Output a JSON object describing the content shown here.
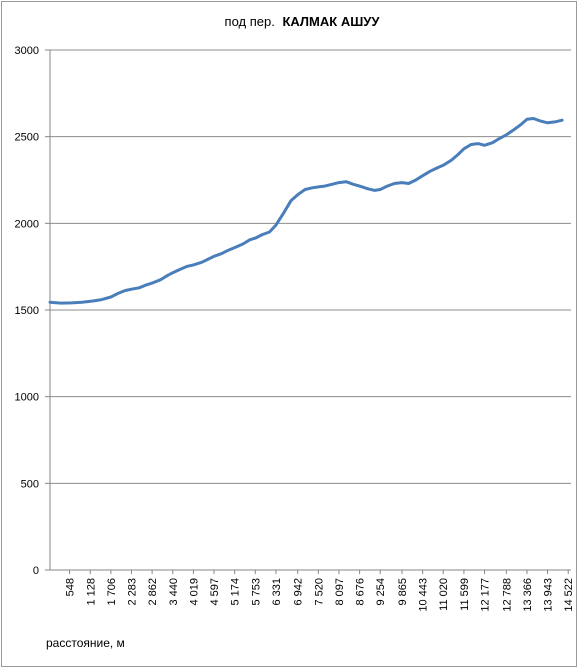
{
  "chart_data": {
    "type": "line",
    "title_prefix": "под   пер.",
    "title_bold": "КАЛМАК АШУУ",
    "xlabel": "расстояние, м",
    "ylabel": "",
    "ylim": [
      0,
      3000
    ],
    "y_ticks": [
      "0",
      "500",
      "1000",
      "1500",
      "2000",
      "2500",
      "3000"
    ],
    "y_tick_values": [
      0,
      500,
      1000,
      1500,
      2000,
      2500,
      3000
    ],
    "x_ticks": [
      "548",
      "1 128",
      "1 706",
      "2 283",
      "2 862",
      "3 440",
      "4 019",
      "4 597",
      "5 174",
      "5 753",
      "6 331",
      "6 942",
      "7 520",
      "8 097",
      "8 676",
      "9 254",
      "9 865",
      "10 443",
      "11 020",
      "11 599",
      "12 177",
      "12 788",
      "13 366",
      "13 943",
      "14 522"
    ],
    "x_tick_values": [
      548,
      1128,
      1706,
      2283,
      2862,
      3440,
      4019,
      4597,
      5174,
      5753,
      6331,
      6942,
      7520,
      8097,
      8676,
      9254,
      9865,
      10443,
      11020,
      11599,
      12177,
      12788,
      13366,
      13943,
      14522
    ],
    "xlim": [
      0,
      14600
    ],
    "grid": "horizontal",
    "line_color": "#4a7ebb",
    "series": [
      {
        "x": [
          0,
          300,
          600,
          900,
          1200,
          1450,
          1706,
          1900,
          2100,
          2283,
          2500,
          2700,
          2862,
          3100,
          3300,
          3440,
          3650,
          3850,
          4019,
          4250,
          4450,
          4597,
          4800,
          5000,
          5174,
          5400,
          5600,
          5753,
          5950,
          6150,
          6331,
          6550,
          6750,
          6942,
          7150,
          7350,
          7520,
          7700,
          7900,
          8097,
          8300,
          8500,
          8676,
          8900,
          9100,
          9254,
          9450,
          9650,
          9865,
          10050,
          10250,
          10443,
          10650,
          10850,
          11020,
          11250,
          11450,
          11599,
          11800,
          12000,
          12177,
          12400,
          12600,
          12788,
          13000,
          13200,
          13366,
          13550,
          13750,
          13943,
          14150,
          14350
        ],
        "values": [
          1545,
          1540,
          1541,
          1545,
          1552,
          1560,
          1575,
          1595,
          1612,
          1620,
          1628,
          1645,
          1655,
          1675,
          1700,
          1715,
          1735,
          1752,
          1760,
          1775,
          1795,
          1810,
          1825,
          1845,
          1860,
          1880,
          1905,
          1915,
          1935,
          1950,
          1990,
          2060,
          2130,
          2165,
          2195,
          2205,
          2210,
          2215,
          2225,
          2235,
          2240,
          2225,
          2215,
          2200,
          2190,
          2195,
          2215,
          2230,
          2235,
          2230,
          2250,
          2275,
          2300,
          2320,
          2335,
          2365,
          2400,
          2430,
          2455,
          2460,
          2450,
          2465,
          2490,
          2510,
          2540,
          2570,
          2600,
          2605,
          2590,
          2580,
          2585,
          2595
        ]
      }
    ]
  }
}
